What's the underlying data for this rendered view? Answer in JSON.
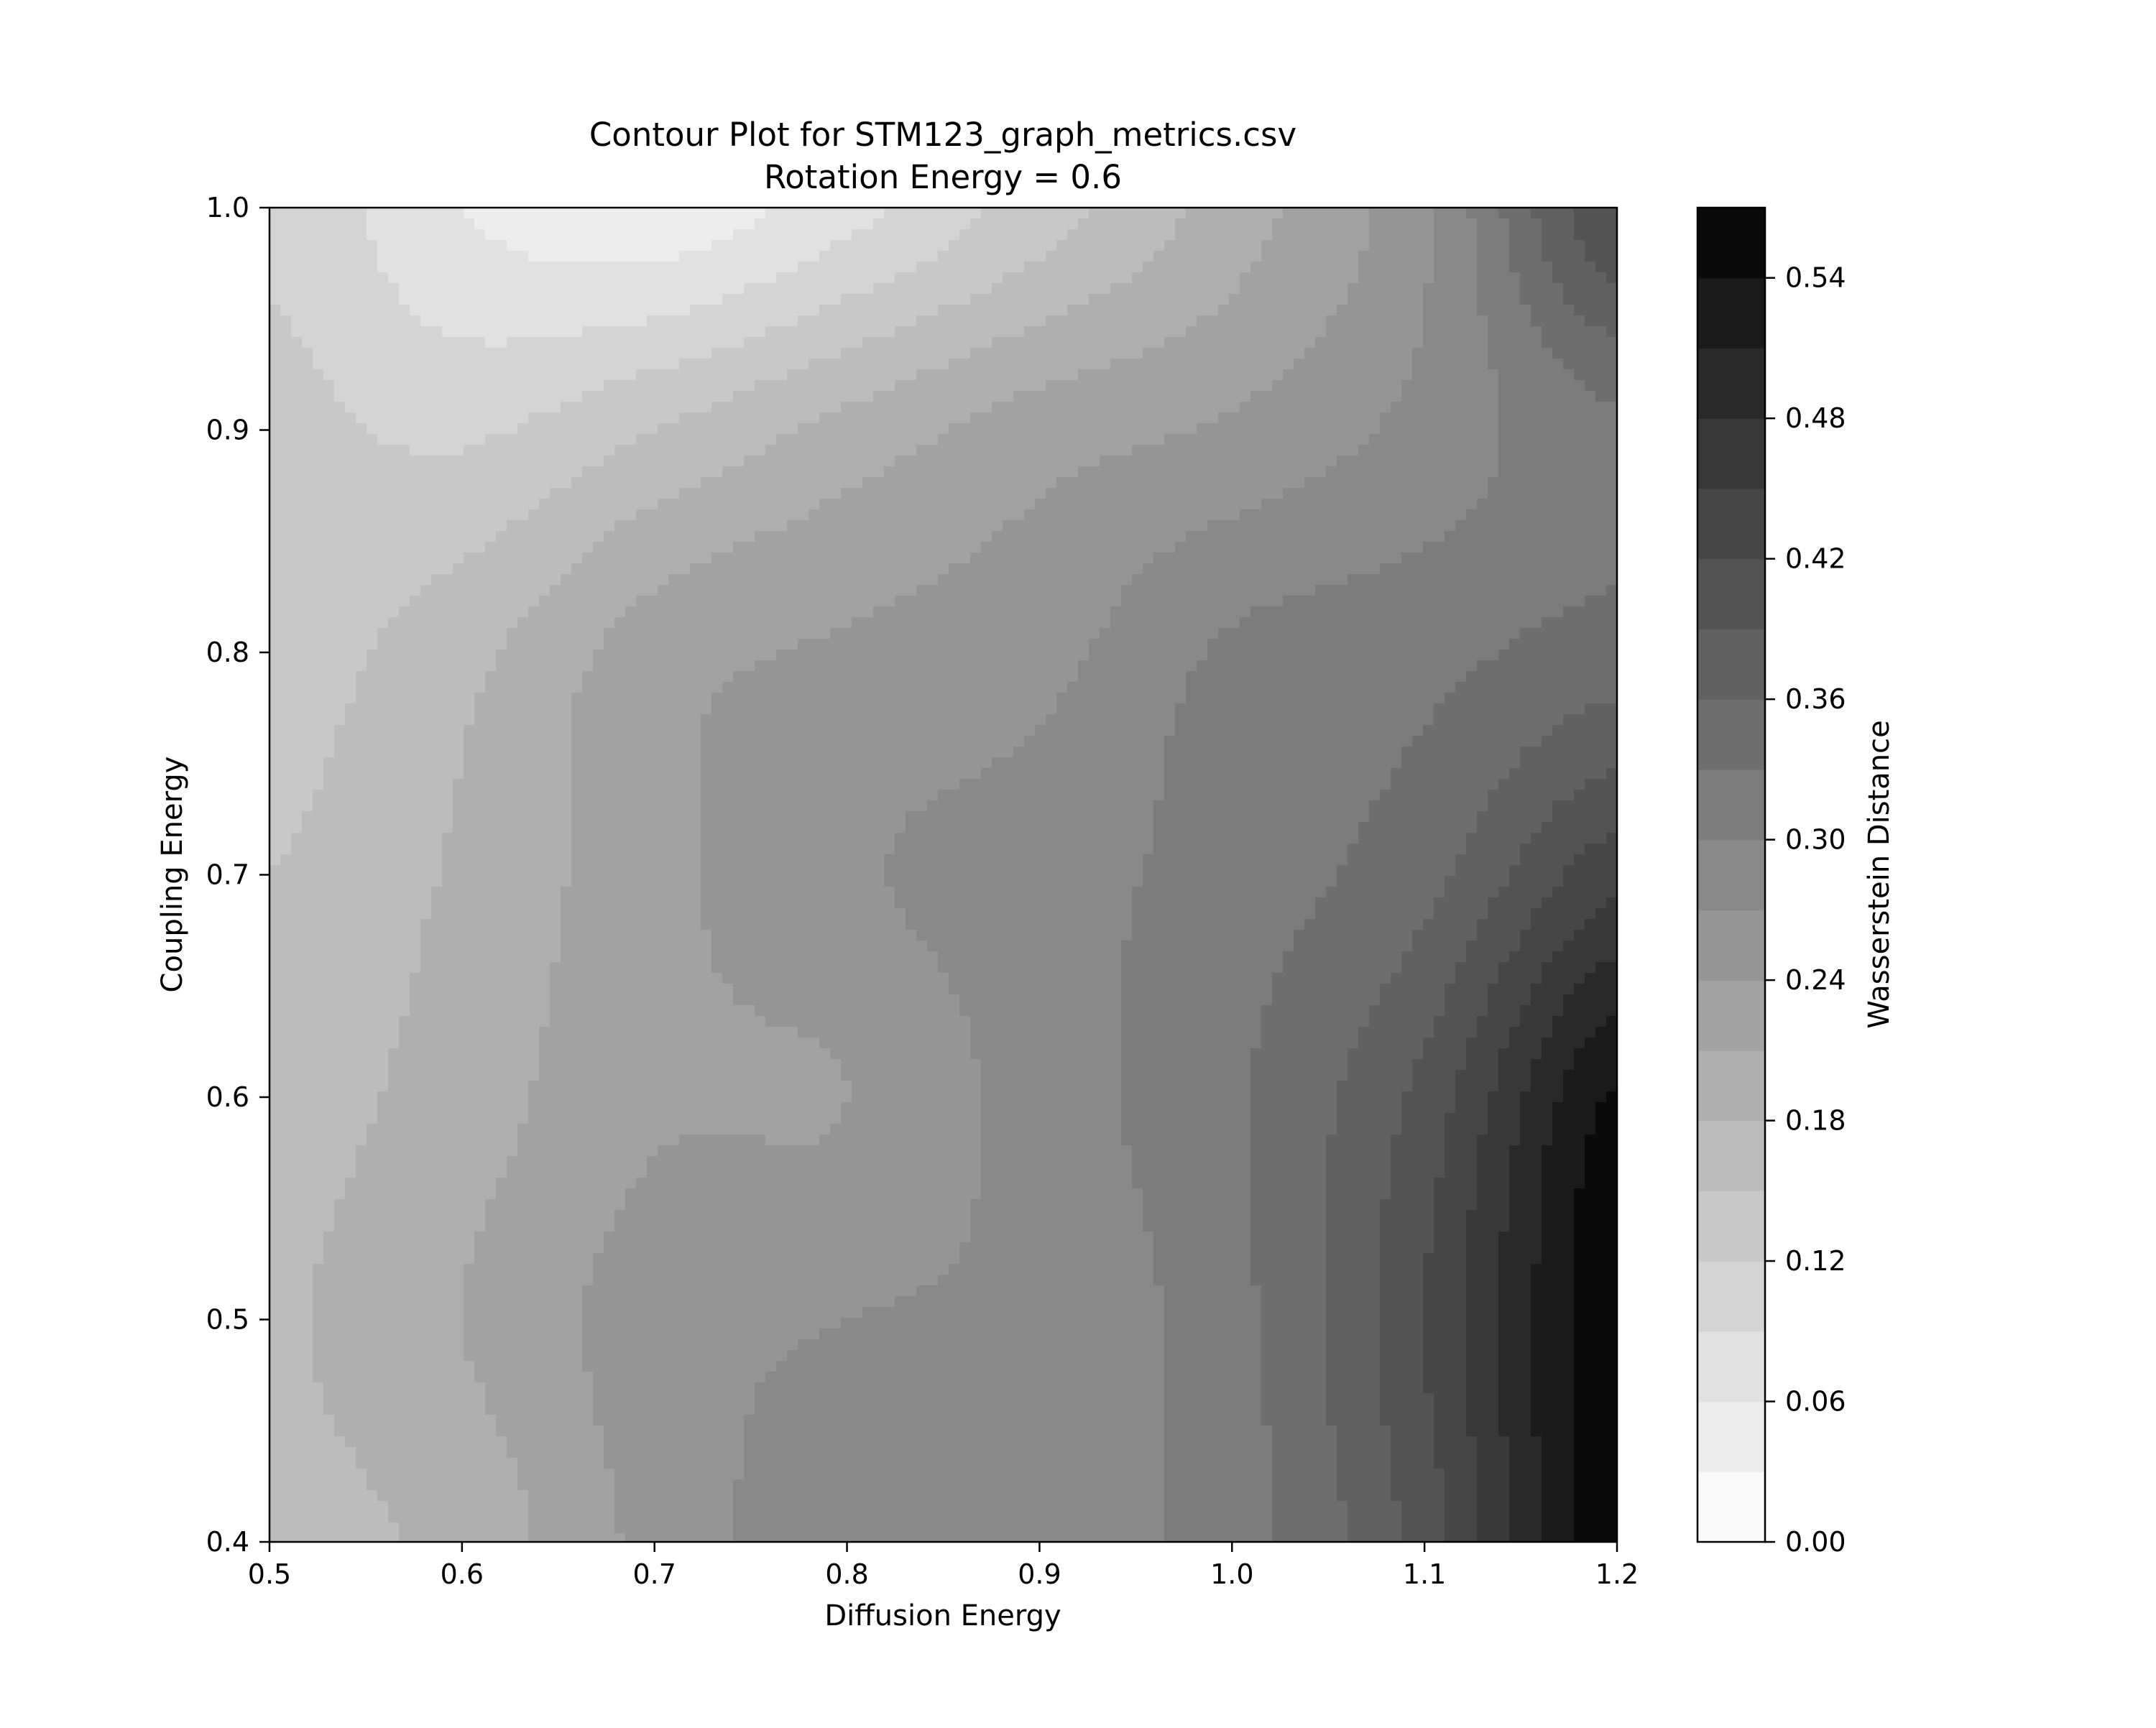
{
  "chart_data": {
    "type": "contour",
    "title": "Contour Plot for STM123_graph_metrics.csv",
    "subtitle": "Rotation Energy = 0.6",
    "xlabel": "Diffusion Energy",
    "ylabel": "Coupling Energy",
    "xlim": [
      0.5,
      1.2
    ],
    "ylim": [
      0.4,
      1.0
    ],
    "x_ticks": [
      0.5,
      0.6,
      0.7,
      0.8,
      0.9,
      1.0,
      1.1,
      1.2
    ],
    "y_ticks": [
      0.4,
      0.5,
      0.6,
      0.7,
      0.8,
      0.9,
      1.0
    ],
    "x_tick_labels": [
      "0.5",
      "0.6",
      "0.7",
      "0.8",
      "0.9",
      "1.0",
      "1.1",
      "1.2"
    ],
    "y_tick_labels": [
      "0.4",
      "0.5",
      "0.6",
      "0.7",
      "0.8",
      "0.9",
      "1.0"
    ],
    "colormap": "Greys",
    "colorbar": {
      "label": "Wasserstein Distance",
      "min": 0.0,
      "max": 0.57,
      "level_step": 0.03,
      "ticks": [
        0.0,
        0.06,
        0.12,
        0.18,
        0.24,
        0.3,
        0.36,
        0.42,
        0.48,
        0.54
      ],
      "tick_labels": [
        "0.00",
        "0.06",
        "0.12",
        "0.18",
        "0.24",
        "0.30",
        "0.36",
        "0.42",
        "0.48",
        "0.54"
      ]
    },
    "grid_x": [
      0.5,
      0.6,
      0.7,
      0.8,
      0.9,
      1.0,
      1.1,
      1.2
    ],
    "grid_y": [
      0.4,
      0.5,
      0.6,
      0.7,
      0.8,
      0.9,
      1.0
    ],
    "z": [
      [
        0.17,
        0.19,
        0.25,
        0.29,
        0.29,
        0.315,
        0.405,
        0.565
      ],
      [
        0.175,
        0.21,
        0.255,
        0.27,
        0.28,
        0.32,
        0.42,
        0.565
      ],
      [
        0.165,
        0.195,
        0.235,
        0.24,
        0.285,
        0.325,
        0.4,
        0.545
      ],
      [
        0.15,
        0.185,
        0.23,
        0.265,
        0.285,
        0.315,
        0.35,
        0.44
      ],
      [
        0.135,
        0.17,
        0.225,
        0.245,
        0.26,
        0.305,
        0.32,
        0.345
      ],
      [
        0.13,
        0.115,
        0.15,
        0.19,
        0.225,
        0.245,
        0.28,
        0.325
      ],
      [
        0.115,
        0.06,
        0.04,
        0.08,
        0.135,
        0.195,
        0.265,
        0.42
      ]
    ],
    "grid": false
  }
}
